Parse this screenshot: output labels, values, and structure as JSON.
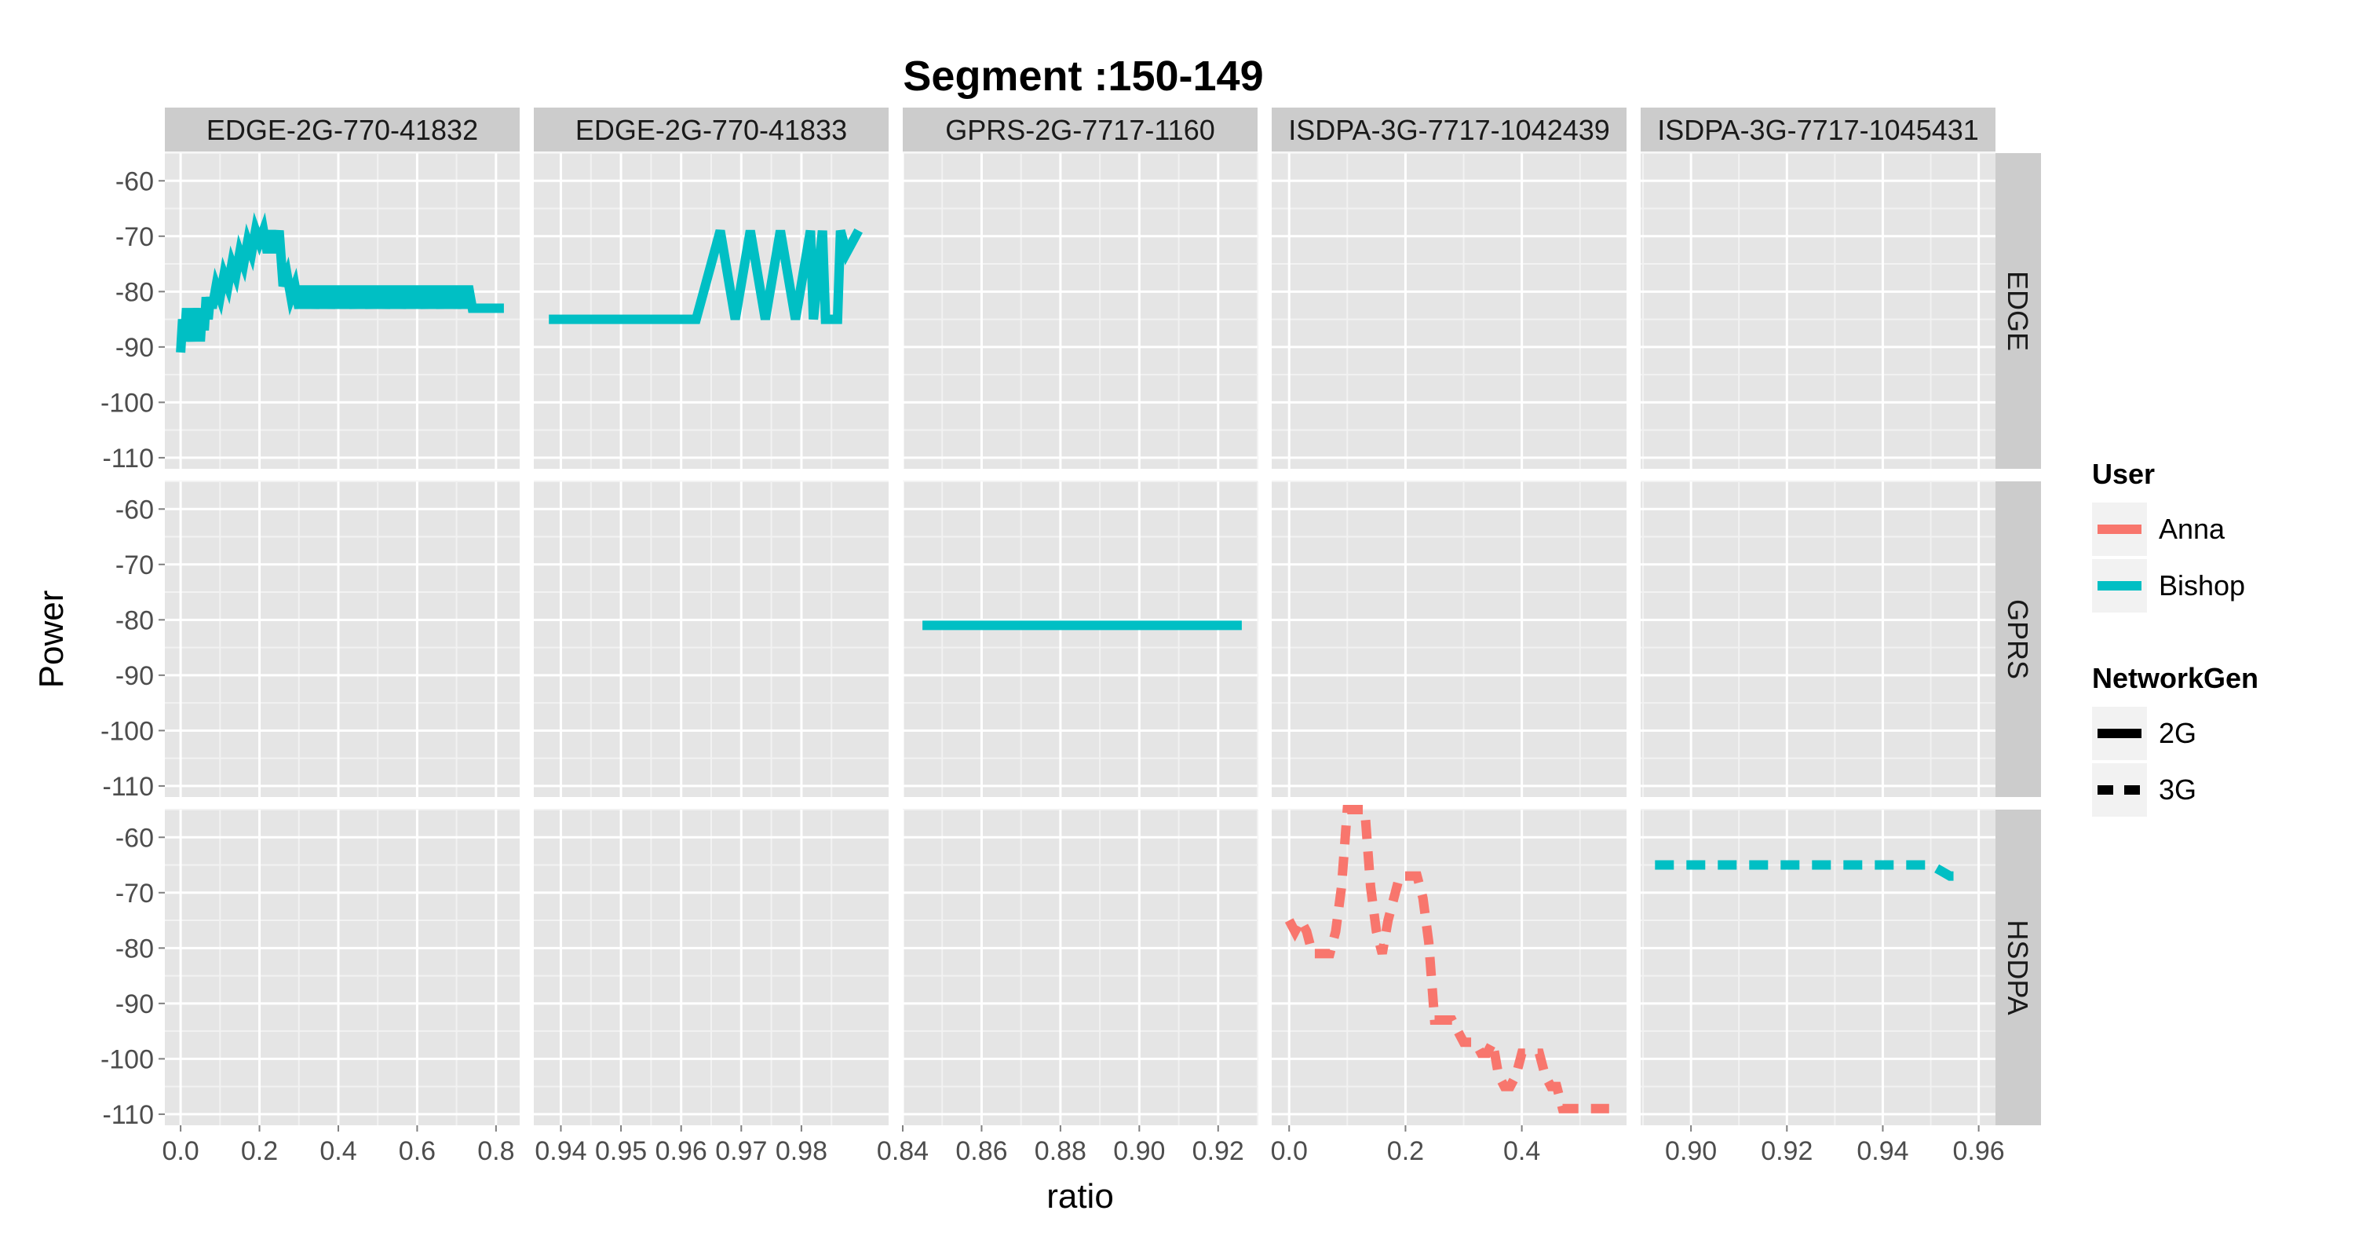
{
  "chart_data": {
    "type": "line",
    "title": "Segment :150-149",
    "xlabel": "ratio",
    "ylabel": "Power",
    "ylim": [
      -112,
      -55
    ],
    "y_ticks": [
      -60,
      -70,
      -80,
      -90,
      -100,
      -110
    ],
    "y_tick_labels": [
      "-60",
      "-70",
      "-80",
      "-90",
      "-100",
      "-110"
    ],
    "grid": true,
    "colors": {
      "Anna": "#F8766D",
      "Bishop": "#00BFC4"
    },
    "column_facets": [
      {
        "label": "EDGE-2G-770-41832",
        "xlim": [
          -0.04,
          0.86
        ],
        "ticks": [
          0.0,
          0.2,
          0.4,
          0.6,
          0.8
        ],
        "tick_labels": [
          "0.0",
          "0.2",
          "0.4",
          "0.6",
          "0.8"
        ]
      },
      {
        "label": "EDGE-2G-770-41833",
        "xlim": [
          0.9355,
          0.9945
        ],
        "ticks": [
          0.94,
          0.95,
          0.96,
          0.97,
          0.98
        ],
        "tick_labels": [
          "0.94",
          "0.95",
          "0.96",
          "0.97",
          "0.98"
        ]
      },
      {
        "label": "GPRS-2G-7717-1160",
        "xlim": [
          0.84,
          0.93
        ],
        "ticks": [
          0.84,
          0.86,
          0.88,
          0.9,
          0.92
        ],
        "tick_labels": [
          "0.84",
          "0.86",
          "0.88",
          "0.90",
          "0.92"
        ]
      },
      {
        "label": "ISDPA-3G-7717-1042439",
        "xlim": [
          -0.03,
          0.58
        ],
        "ticks": [
          0.0,
          0.2,
          0.4
        ],
        "tick_labels": [
          "0.0",
          "0.2",
          "0.4"
        ]
      },
      {
        "label": "ISDPA-3G-7717-1045431",
        "xlim": [
          0.8895,
          0.9635
        ],
        "ticks": [
          0.9,
          0.92,
          0.94,
          0.96
        ],
        "tick_labels": [
          "0.90",
          "0.92",
          "0.94",
          "0.96"
        ]
      }
    ],
    "row_facets": [
      "EDGE",
      "GPRS",
      "HSDPA"
    ],
    "series": [
      {
        "col": 0,
        "row": 0,
        "user": "Bishop",
        "network": "2G",
        "x": [
          0.0,
          0.005,
          0.01,
          0.015,
          0.02,
          0.025,
          0.03,
          0.035,
          0.04,
          0.045,
          0.05,
          0.055,
          0.06,
          0.065,
          0.07,
          0.075,
          0.08,
          0.09,
          0.1,
          0.11,
          0.12,
          0.13,
          0.14,
          0.15,
          0.16,
          0.17,
          0.18,
          0.19,
          0.2,
          0.21,
          0.22,
          0.23,
          0.24,
          0.25,
          0.26,
          0.27,
          0.28,
          0.29,
          0.3,
          0.31,
          0.32,
          0.33,
          0.34,
          0.35,
          0.36,
          0.37,
          0.38,
          0.39,
          0.4,
          0.41,
          0.42,
          0.43,
          0.44,
          0.45,
          0.46,
          0.47,
          0.48,
          0.49,
          0.5,
          0.51,
          0.52,
          0.53,
          0.54,
          0.55,
          0.56,
          0.57,
          0.58,
          0.59,
          0.6,
          0.61,
          0.62,
          0.63,
          0.64,
          0.65,
          0.66,
          0.67,
          0.68,
          0.69,
          0.7,
          0.71,
          0.72,
          0.73,
          0.74,
          0.75,
          0.82
        ],
        "y": [
          -91,
          -85,
          -89,
          -83,
          -88,
          -85,
          -89,
          -83,
          -87,
          -83,
          -89,
          -83,
          -87,
          -81,
          -85,
          -81,
          -83,
          -79,
          -81,
          -77,
          -79,
          -75,
          -77,
          -73,
          -75,
          -71,
          -73,
          -69,
          -71,
          -69,
          -73,
          -69,
          -73,
          -69,
          -79,
          -77,
          -81,
          -79,
          -83,
          -79,
          -83,
          -79,
          -83,
          -79,
          -83,
          -79,
          -83,
          -79,
          -83,
          -79,
          -83,
          -79,
          -83,
          -79,
          -83,
          -79,
          -83,
          -79,
          -83,
          -79,
          -83,
          -79,
          -83,
          -79,
          -83,
          -79,
          -83,
          -79,
          -83,
          -79,
          -83,
          -79,
          -83,
          -79,
          -83,
          -79,
          -83,
          -79,
          -83,
          -79,
          -83,
          -79,
          -83,
          -83,
          -83
        ]
      },
      {
        "col": 1,
        "row": 0,
        "user": "Bishop",
        "network": "2G",
        "x": [
          0.938,
          0.9625,
          0.9665,
          0.969,
          0.9715,
          0.974,
          0.9765,
          0.979,
          0.9815,
          0.982,
          0.9835,
          0.984,
          0.986,
          0.9865,
          0.9875,
          0.9895
        ],
        "y": [
          -85,
          -85,
          -69,
          -85,
          -69,
          -85,
          -69,
          -85,
          -69,
          -85,
          -69,
          -85,
          -85,
          -69,
          -73,
          -69
        ]
      },
      {
        "col": 2,
        "row": 1,
        "user": "Bishop",
        "network": "2G",
        "x": [
          0.845,
          0.926
        ],
        "y": [
          -81,
          -81
        ]
      },
      {
        "col": 3,
        "row": 2,
        "user": "Anna",
        "network": "3G",
        "x": [
          0.0,
          0.01,
          0.02,
          0.03,
          0.04,
          0.05,
          0.06,
          0.07,
          0.08,
          0.09,
          0.1,
          0.11,
          0.12,
          0.13,
          0.14,
          0.15,
          0.16,
          0.17,
          0.18,
          0.19,
          0.2,
          0.21,
          0.22,
          0.23,
          0.24,
          0.25,
          0.26,
          0.27,
          0.28,
          0.29,
          0.3,
          0.31,
          0.32,
          0.33,
          0.34,
          0.35,
          0.36,
          0.37,
          0.38,
          0.39,
          0.4,
          0.41,
          0.42,
          0.43,
          0.44,
          0.45,
          0.46,
          0.47,
          0.48,
          0.49,
          0.5,
          0.51,
          0.52,
          0.53,
          0.55
        ],
        "y": [
          -75,
          -77,
          -75,
          -77,
          -81,
          -81,
          -81,
          -81,
          -77,
          -69,
          -55,
          -55,
          -55,
          -55,
          -69,
          -77,
          -81,
          -75,
          -71,
          -67,
          -67,
          -67,
          -67,
          -71,
          -79,
          -93,
          -93,
          -93,
          -93,
          -95,
          -97,
          -97,
          -97,
          -99,
          -99,
          -97,
          -103,
          -105,
          -105,
          -103,
          -99,
          -99,
          -99,
          -99,
          -103,
          -105,
          -105,
          -109,
          -109,
          -109,
          -109,
          -109,
          -109,
          -109,
          -109
        ]
      },
      {
        "col": 4,
        "row": 2,
        "user": "Bishop",
        "network": "3G",
        "x": [
          0.8925,
          0.9,
          0.91,
          0.92,
          0.93,
          0.94,
          0.948,
          0.95,
          0.952,
          0.954,
          0.956
        ],
        "y": [
          -65,
          -65,
          -65,
          -65,
          -65,
          -65,
          -65,
          -65,
          -66,
          -67,
          -67
        ]
      }
    ],
    "legend": {
      "placement": "right",
      "user_title": "User",
      "user_entries": [
        "Anna",
        "Bishop"
      ],
      "network_title": "NetworkGen",
      "network_entries": [
        "2G",
        "3G"
      ]
    }
  }
}
